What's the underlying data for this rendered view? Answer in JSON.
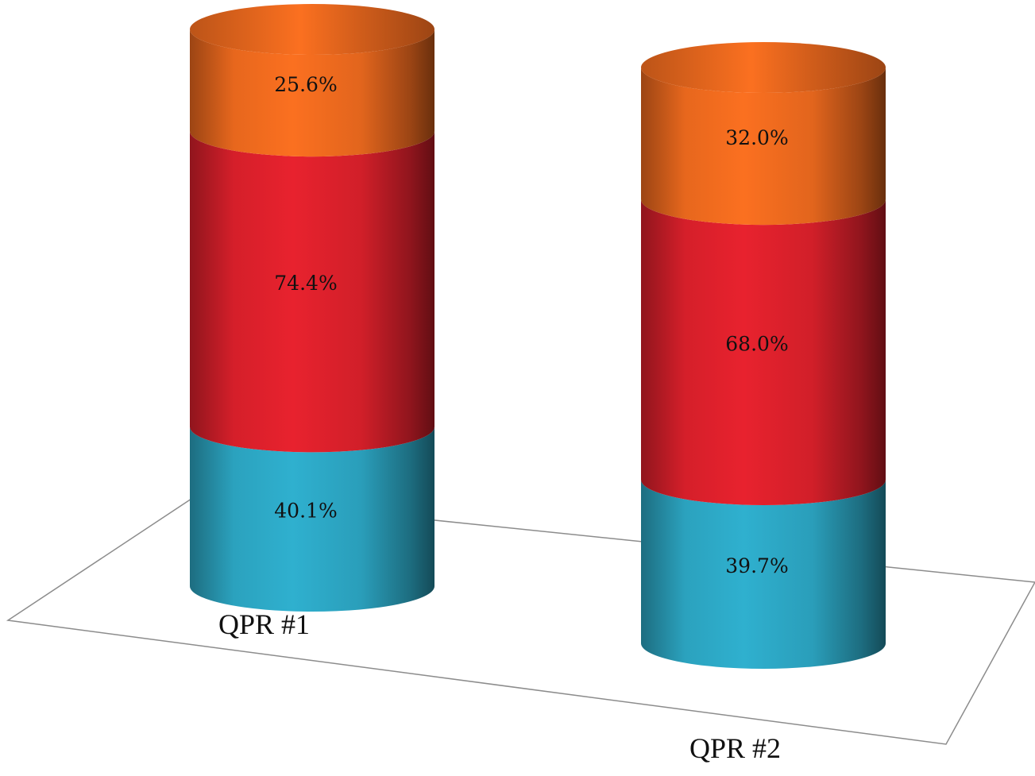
{
  "chart_data": {
    "type": "bar",
    "subtype": "3d-stacked-cylinder",
    "title": "",
    "xlabel": "",
    "ylabel": "",
    "categories": [
      "QPR #1",
      "QPR #2"
    ],
    "series": [
      {
        "color": "#2fb0cf",
        "values": [
          40.1,
          39.7
        ],
        "labels": [
          "40.1%",
          "39.7%"
        ]
      },
      {
        "color": "#e8222e",
        "values": [
          74.4,
          68.0
        ],
        "labels": [
          "74.4%",
          "68.0%"
        ]
      },
      {
        "color": "#fb7020",
        "values": [
          25.6,
          32.0
        ],
        "labels": [
          "25.6%",
          "32.0%"
        ]
      }
    ],
    "legend": "none",
    "grid": false,
    "floor": true
  }
}
